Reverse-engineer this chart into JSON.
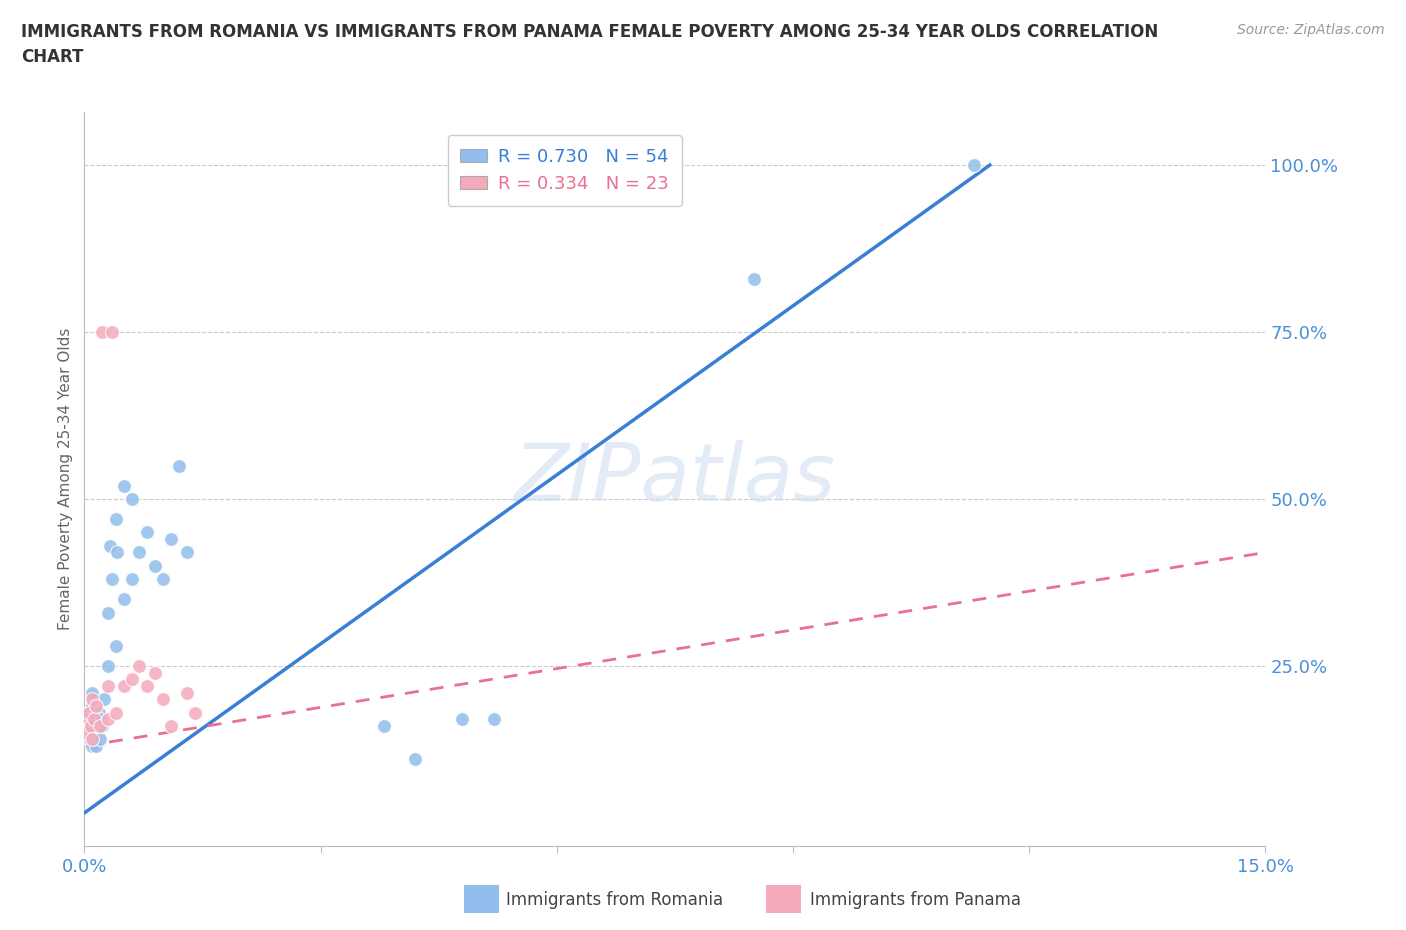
{
  "title": "IMMIGRANTS FROM ROMANIA VS IMMIGRANTS FROM PANAMA FEMALE POVERTY AMONG 25-34 YEAR OLDS CORRELATION\nCHART",
  "source_text": "Source: ZipAtlas.com",
  "ylabel": "Female Poverty Among 25-34 Year Olds",
  "xlim": [
    0.0,
    0.15
  ],
  "ylim": [
    -0.02,
    1.08
  ],
  "romania_color": "#92BDEC",
  "panama_color": "#F4AABB",
  "romania_line_color": "#3A7FD5",
  "panama_line_color": "#E87090",
  "romania_R": 0.73,
  "romania_N": 54,
  "panama_R": 0.334,
  "panama_N": 23,
  "watermark": "ZIPatlas",
  "romania_x": [
    0.0002,
    0.0003,
    0.0004,
    0.0004,
    0.0005,
    0.0005,
    0.0005,
    0.0006,
    0.0006,
    0.0007,
    0.0007,
    0.0008,
    0.0008,
    0.0009,
    0.001,
    0.001,
    0.001,
    0.001,
    0.001,
    0.0012,
    0.0012,
    0.0013,
    0.0015,
    0.0015,
    0.0016,
    0.0018,
    0.002,
    0.002,
    0.0022,
    0.0025,
    0.003,
    0.003,
    0.0032,
    0.0035,
    0.004,
    0.004,
    0.0042,
    0.005,
    0.005,
    0.006,
    0.006,
    0.007,
    0.008,
    0.009,
    0.01,
    0.011,
    0.012,
    0.013,
    0.038,
    0.042,
    0.048,
    0.052,
    0.085,
    0.113
  ],
  "romania_y": [
    0.15,
    0.16,
    0.15,
    0.17,
    0.14,
    0.16,
    0.18,
    0.15,
    0.17,
    0.14,
    0.16,
    0.15,
    0.17,
    0.16,
    0.13,
    0.15,
    0.17,
    0.19,
    0.21,
    0.14,
    0.16,
    0.18,
    0.13,
    0.17,
    0.16,
    0.18,
    0.14,
    0.17,
    0.16,
    0.2,
    0.25,
    0.33,
    0.43,
    0.38,
    0.28,
    0.47,
    0.42,
    0.35,
    0.52,
    0.38,
    0.5,
    0.42,
    0.45,
    0.4,
    0.38,
    0.44,
    0.55,
    0.42,
    0.16,
    0.11,
    0.17,
    0.17,
    0.83,
    1.0
  ],
  "panama_x": [
    0.0002,
    0.0004,
    0.0006,
    0.0008,
    0.001,
    0.001,
    0.0012,
    0.0015,
    0.002,
    0.0022,
    0.003,
    0.003,
    0.0035,
    0.004,
    0.005,
    0.006,
    0.007,
    0.008,
    0.009,
    0.01,
    0.011,
    0.013,
    0.014
  ],
  "panama_y": [
    0.15,
    0.17,
    0.18,
    0.16,
    0.14,
    0.2,
    0.17,
    0.19,
    0.16,
    0.75,
    0.17,
    0.22,
    0.75,
    0.18,
    0.22,
    0.23,
    0.25,
    0.22,
    0.24,
    0.2,
    0.16,
    0.21,
    0.18
  ],
  "ro_line_x": [
    0.0,
    0.115
  ],
  "ro_line_y": [
    0.03,
    1.0
  ],
  "pa_line_x": [
    0.0,
    0.15
  ],
  "pa_line_y": [
    0.13,
    0.42
  ]
}
